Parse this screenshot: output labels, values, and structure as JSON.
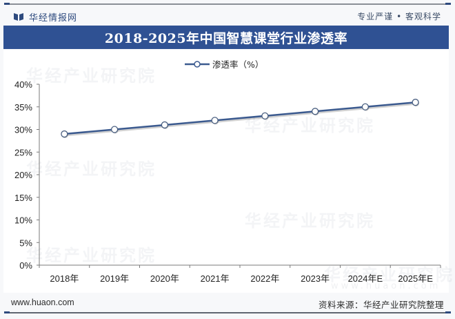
{
  "header": {
    "brand": "华经情报网",
    "slogan": "专业严谨 • 客观科学"
  },
  "title": "2018-2025年中国智慧课堂行业渗透率",
  "legend": {
    "series_label": "渗透率（%）"
  },
  "watermark": {
    "text": "华经产业研究院",
    "url": "www.huaon.com"
  },
  "footer": {
    "website": "www.huaon.com",
    "source": "资料来源：华经产业研究院整理"
  },
  "colors": {
    "title_bar": "#2f5193",
    "line": "#3b5a8f",
    "marker_fill": "#ffffff",
    "brand": "#2e4a7e"
  },
  "chart_data": {
    "type": "line",
    "title": "2018-2025年中国智慧课堂行业渗透率",
    "xlabel": "",
    "ylabel": "",
    "categories": [
      "2018年",
      "2019年",
      "2020年",
      "2021年",
      "2022年",
      "2023年",
      "2024年E",
      "2025年E"
    ],
    "series": [
      {
        "name": "渗透率（%）",
        "values": [
          29,
          30,
          31,
          32,
          33,
          34,
          35,
          36
        ]
      }
    ],
    "yticks": [
      "0%",
      "5%",
      "10%",
      "15%",
      "20%",
      "25%",
      "30%",
      "35%",
      "40%"
    ],
    "ylim": [
      0,
      40
    ],
    "grid": false,
    "legend_position": "top"
  }
}
